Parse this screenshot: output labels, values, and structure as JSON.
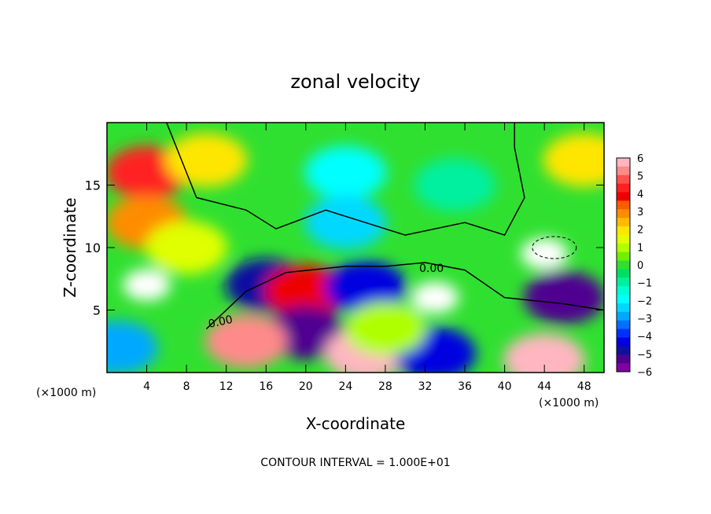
{
  "chart_data": {
    "type": "heatmap",
    "title": "zonal velocity",
    "xlabel": "X-coordinate",
    "ylabel": "Z-coordinate",
    "x_unit_left": "(×1000 m)",
    "x_unit_right": "(×1000 m)",
    "xlim": [
      0,
      50
    ],
    "ylim": [
      0,
      20
    ],
    "x_ticks": [
      4,
      8,
      12,
      16,
      20,
      24,
      28,
      32,
      36,
      40,
      44,
      48
    ],
    "y_ticks": [
      5,
      10,
      15
    ],
    "contour_label_1": "0.00",
    "contour_label_2": "0.00",
    "footer": "CONTOUR INTERVAL = 1.000E+01",
    "colorbar": {
      "ticks": [
        6,
        5,
        4,
        3,
        2,
        1,
        0,
        -1,
        -2,
        -3,
        -4,
        -5,
        -6
      ],
      "levels": [
        {
          "value": 6,
          "color": "#ffb6c1"
        },
        {
          "value": 5.5,
          "color": "#ff8a8a"
        },
        {
          "value": 5,
          "color": "#ff5050"
        },
        {
          "value": 4.5,
          "color": "#ff2020"
        },
        {
          "value": 4,
          "color": "#ee0000"
        },
        {
          "value": 3.5,
          "color": "#ff5a00"
        },
        {
          "value": 3,
          "color": "#ff8c00"
        },
        {
          "value": 2.5,
          "color": "#ffbb00"
        },
        {
          "value": 2,
          "color": "#ffe600"
        },
        {
          "value": 1.5,
          "color": "#e0ff00"
        },
        {
          "value": 1,
          "color": "#b0ff00"
        },
        {
          "value": 0.5,
          "color": "#70f000"
        },
        {
          "value": 0,
          "color": "#30e030"
        },
        {
          "value": -0.5,
          "color": "#00e060"
        },
        {
          "value": -1,
          "color": "#00f0a0"
        },
        {
          "value": -1.5,
          "color": "#00ffd0"
        },
        {
          "value": -2,
          "color": "#00ffff"
        },
        {
          "value": -2.5,
          "color": "#00d8ff"
        },
        {
          "value": -3,
          "color": "#00a8ff"
        },
        {
          "value": -3.5,
          "color": "#0070ff"
        },
        {
          "value": -4,
          "color": "#0030ff"
        },
        {
          "value": -4.5,
          "color": "#0000e0"
        },
        {
          "value": -5,
          "color": "#1010a0"
        },
        {
          "value": -5.5,
          "color": "#500090"
        },
        {
          "value": -6,
          "color": "#8000a0"
        }
      ]
    },
    "features": [
      {
        "x": 4,
        "z": 16,
        "u": 4.5
      },
      {
        "x": 4,
        "z": 12,
        "u": 3
      },
      {
        "x": 10,
        "z": 17,
        "u": 2
      },
      {
        "x": 24,
        "z": 16,
        "u": -2
      },
      {
        "x": 24,
        "z": 12,
        "u": -2.3
      },
      {
        "x": 35,
        "z": 15,
        "u": -1
      },
      {
        "x": 48,
        "z": 17,
        "u": 2
      },
      {
        "x": 16,
        "z": 7,
        "u": -5
      },
      {
        "x": 4,
        "z": 7,
        "u": 6.5
      },
      {
        "x": 1,
        "z": 2,
        "u": -3
      },
      {
        "x": 20,
        "z": 6.5,
        "u": 4
      },
      {
        "x": 20,
        "z": 3.2,
        "u": -5.5
      },
      {
        "x": 14,
        "z": 2.5,
        "u": 5.5
      },
      {
        "x": 26,
        "z": 6.8,
        "u": -4.5
      },
      {
        "x": 26,
        "z": 1.5,
        "u": 6
      },
      {
        "x": 33,
        "z": 6,
        "u": 6.5
      },
      {
        "x": 33,
        "z": 1.5,
        "u": -4.5
      },
      {
        "x": 44,
        "z": 9.5,
        "u": 7
      },
      {
        "x": 44,
        "z": 1,
        "u": 6
      },
      {
        "x": 46,
        "z": 6,
        "u": -5.5
      },
      {
        "x": 28,
        "z": 3.5,
        "u": 1
      },
      {
        "x": 8,
        "z": 10,
        "u": 1.5
      }
    ]
  }
}
